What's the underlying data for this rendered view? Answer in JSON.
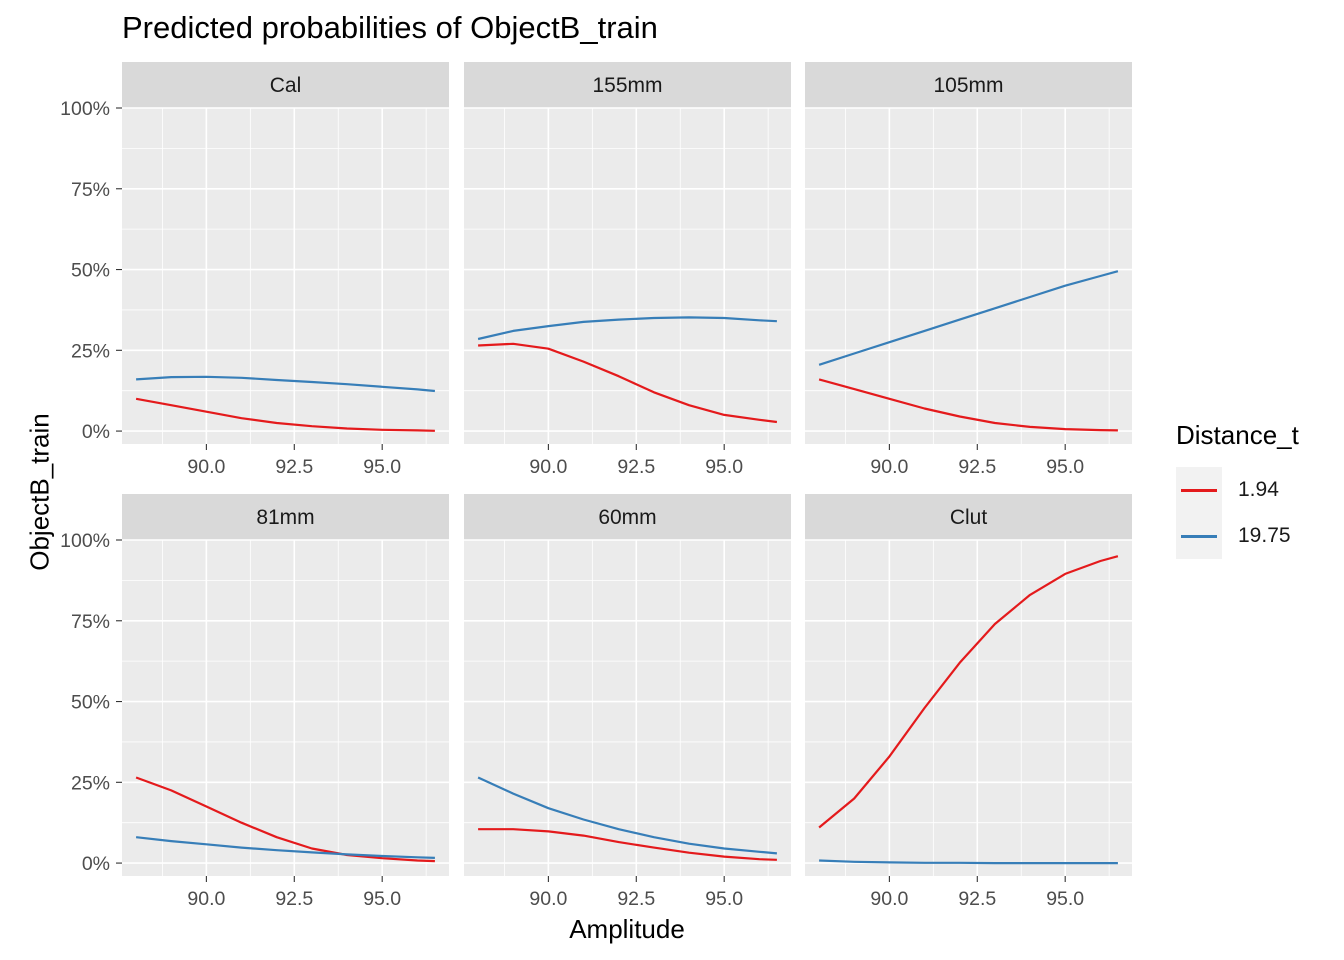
{
  "title": "Predicted probabilities of ObjectB_train",
  "xlabel": "Amplitude",
  "ylabel": "ObjectB_train",
  "legend": {
    "title": "Distance_t",
    "items": [
      {
        "label": "1.94",
        "color": "#e41a1c"
      },
      {
        "label": "19.75",
        "color": "#377eb8"
      }
    ]
  },
  "chart_data": {
    "type": "line",
    "title": "Predicted probabilities of ObjectB_train",
    "xlabel": "Amplitude",
    "ylabel": "ObjectB_train",
    "xlim": [
      87.6,
      96.9
    ],
    "ylim": [
      -0.04,
      1.0
    ],
    "x_ticks": [
      90.0,
      92.5,
      95.0
    ],
    "x_tick_labels": [
      "90.0",
      "92.5",
      "95.0"
    ],
    "y_ticks": [
      0,
      0.25,
      0.5,
      0.75,
      1.0
    ],
    "y_tick_labels": [
      "0%",
      "25%",
      "50%",
      "75%",
      "100%"
    ],
    "grid": true,
    "legend_position": "right",
    "x": [
      88,
      89,
      90,
      91,
      92,
      93,
      94,
      95,
      96,
      96.5
    ],
    "panels": [
      {
        "name": "Cal",
        "series": [
          {
            "name": "1.94",
            "color": "#e41a1c",
            "values": [
              0.1,
              0.08,
              0.06,
              0.04,
              0.025,
              0.015,
              0.008,
              0.004,
              0.002,
              0.001
            ]
          },
          {
            "name": "19.75",
            "color": "#377eb8",
            "values": [
              0.16,
              0.167,
              0.168,
              0.165,
              0.158,
              0.152,
              0.145,
              0.137,
              0.129,
              0.124
            ]
          }
        ]
      },
      {
        "name": "155mm",
        "series": [
          {
            "name": "1.94",
            "color": "#e41a1c",
            "values": [
              0.265,
              0.27,
              0.255,
              0.215,
              0.17,
              0.12,
              0.08,
              0.05,
              0.035,
              0.028
            ]
          },
          {
            "name": "19.75",
            "color": "#377eb8",
            "values": [
              0.285,
              0.31,
              0.325,
              0.338,
              0.345,
              0.35,
              0.352,
              0.35,
              0.343,
              0.34
            ]
          }
        ]
      },
      {
        "name": "105mm",
        "series": [
          {
            "name": "1.94",
            "color": "#e41a1c",
            "values": [
              0.16,
              0.13,
              0.1,
              0.07,
              0.045,
              0.025,
              0.013,
              0.006,
              0.003,
              0.002
            ]
          },
          {
            "name": "19.75",
            "color": "#377eb8",
            "values": [
              0.205,
              0.24,
              0.275,
              0.31,
              0.345,
              0.38,
              0.415,
              0.45,
              0.48,
              0.495
            ]
          }
        ]
      },
      {
        "name": "81mm",
        "series": [
          {
            "name": "1.94",
            "color": "#e41a1c",
            "values": [
              0.265,
              0.225,
              0.175,
              0.125,
              0.08,
              0.045,
              0.025,
              0.015,
              0.008,
              0.006
            ]
          },
          {
            "name": "19.75",
            "color": "#377eb8",
            "values": [
              0.08,
              0.068,
              0.058,
              0.048,
              0.04,
              0.033,
              0.027,
              0.022,
              0.018,
              0.016
            ]
          }
        ]
      },
      {
        "name": "60mm",
        "series": [
          {
            "name": "1.94",
            "color": "#e41a1c",
            "values": [
              0.105,
              0.105,
              0.098,
              0.085,
              0.065,
              0.048,
              0.032,
              0.02,
              0.012,
              0.01
            ]
          },
          {
            "name": "19.75",
            "color": "#377eb8",
            "values": [
              0.265,
              0.215,
              0.17,
              0.135,
              0.105,
              0.08,
              0.06,
              0.045,
              0.035,
              0.03
            ]
          }
        ]
      },
      {
        "name": "Clut",
        "series": [
          {
            "name": "1.94",
            "color": "#e41a1c",
            "values": [
              0.11,
              0.2,
              0.33,
              0.48,
              0.62,
              0.74,
              0.83,
              0.895,
              0.935,
              0.95
            ]
          },
          {
            "name": "19.75",
            "color": "#377eb8",
            "values": [
              0.008,
              0.004,
              0.002,
              0.001,
              0.001,
              0.0,
              0.0,
              0.0,
              0.0,
              0.0
            ]
          }
        ]
      }
    ]
  }
}
